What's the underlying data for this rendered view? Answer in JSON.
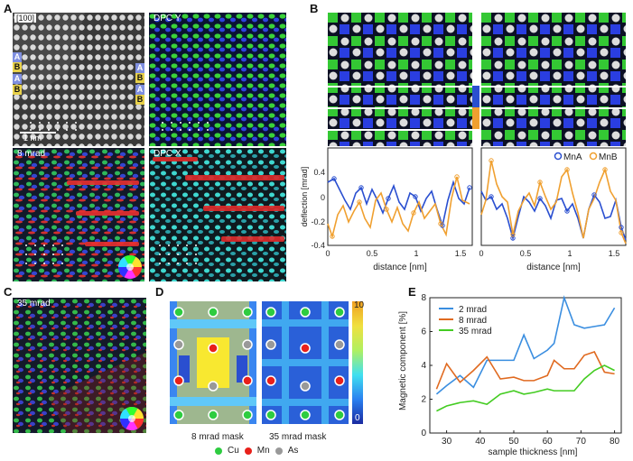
{
  "panel_labels": {
    "a": "A",
    "b": "B",
    "c": "C",
    "d": "D",
    "e": "E"
  },
  "panel_a": {
    "haadf_label": "[100]",
    "scale_bar": "1 nm",
    "dpcy_label": "DPC Y",
    "mrad8_label": "8 mrad",
    "dpcx_label": "DPC X",
    "layer_tags": [
      "A",
      "B",
      "A",
      "B"
    ],
    "colors": {
      "green": "#37c837",
      "blue": "#2a3fe0",
      "red": "#e02a2a",
      "cyan": "#3fe0e0"
    }
  },
  "panel_b": {
    "legend": [
      "MnA",
      "MnB"
    ],
    "ylabel": "deflection [mrad]",
    "xlabel": "distance [nm]",
    "yticks": [
      "0.4",
      "0",
      "-0.2",
      "-0.4"
    ],
    "xticks": [
      "0",
      "0.5",
      "1",
      "1.5"
    ],
    "colors": {
      "MnA": "#2a4fd0",
      "MnB": "#f0a030"
    }
  },
  "panel_c": {
    "label": "35 mrad"
  },
  "panel_d": {
    "mask1": "8 mrad mask",
    "mask2": "35 mrad mask",
    "cbar_max": "10",
    "cbar_min": "0",
    "legend": [
      {
        "name": "Cu",
        "color": "#2ecc40"
      },
      {
        "name": "Mn",
        "color": "#e8201a"
      },
      {
        "name": "As",
        "color": "#999999"
      }
    ]
  },
  "chart_data": {
    "type": "line",
    "title": "",
    "xlabel": "sample thickness [nm]",
    "ylabel": "Magnetic component [%]",
    "xlim": [
      25,
      82
    ],
    "ylim": [
      0,
      8
    ],
    "xticks": [
      30,
      40,
      50,
      60,
      70,
      80
    ],
    "yticks": [
      0,
      2,
      4,
      6,
      8
    ],
    "series": [
      {
        "name": "2 mrad",
        "color": "#3a8ee0",
        "x": [
          27,
          30,
          34,
          38,
          42,
          46,
          50,
          53,
          56,
          60,
          62,
          65,
          68,
          71,
          74,
          77,
          80
        ],
        "y": [
          2.3,
          2.8,
          3.4,
          2.7,
          4.3,
          4.3,
          4.3,
          5.8,
          4.4,
          4.9,
          5.3,
          8.0,
          6.4,
          6.2,
          6.3,
          6.4,
          7.4
        ]
      },
      {
        "name": "8 mrad",
        "color": "#e06a20",
        "x": [
          27,
          30,
          34,
          38,
          42,
          46,
          50,
          53,
          56,
          60,
          62,
          65,
          68,
          71,
          74,
          77,
          80
        ],
        "y": [
          2.6,
          4.1,
          3.0,
          3.7,
          4.5,
          3.2,
          3.3,
          3.1,
          3.1,
          3.4,
          4.3,
          3.8,
          3.8,
          4.6,
          4.8,
          3.6,
          3.5
        ]
      },
      {
        "name": "35 mrad",
        "color": "#44cc22",
        "x": [
          27,
          30,
          34,
          38,
          42,
          46,
          50,
          53,
          56,
          60,
          62,
          65,
          68,
          71,
          74,
          77,
          80
        ],
        "y": [
          1.3,
          1.6,
          1.8,
          1.9,
          1.7,
          2.3,
          2.5,
          2.3,
          2.4,
          2.6,
          2.5,
          2.5,
          2.5,
          3.2,
          3.7,
          4.0,
          3.7
        ]
      }
    ],
    "legend_position": "top-left"
  }
}
